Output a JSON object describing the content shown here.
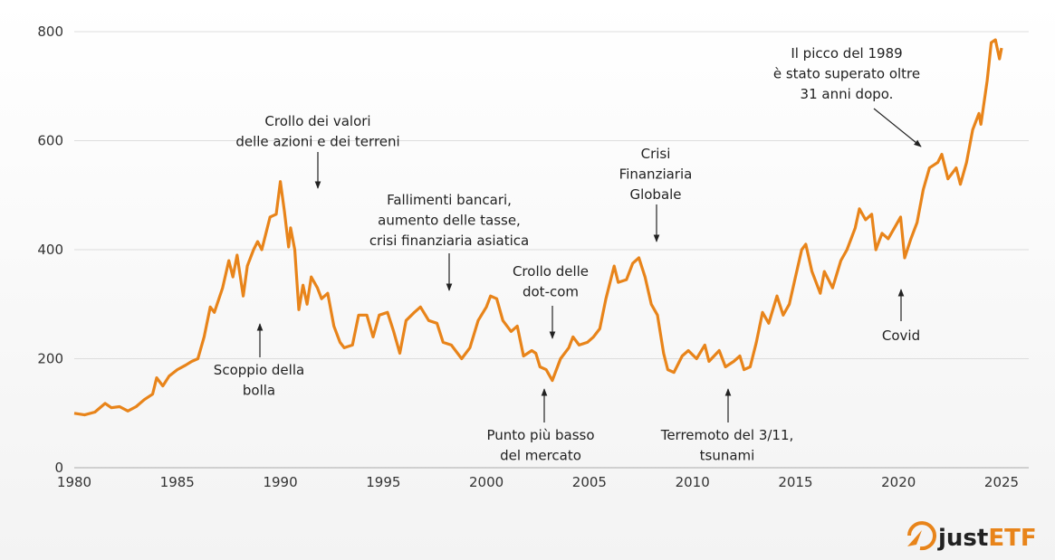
{
  "chart_data": {
    "type": "line",
    "title": "",
    "xlabel": "",
    "ylabel": "",
    "xlim": [
      1980,
      2025
    ],
    "ylim": [
      0,
      800
    ],
    "grid": true,
    "x_ticks": [
      "1980",
      "1985",
      "1990",
      "1995",
      "2000",
      "2005",
      "2010",
      "2015",
      "2020",
      "2025"
    ],
    "y_ticks": [
      "0",
      "200",
      "400",
      "600",
      "800"
    ],
    "line_color": "#e8841a",
    "series": [
      {
        "x": [
          1980,
          1980.5,
          1981,
          1981.5,
          1981.8,
          1982.2,
          1982.6,
          1983,
          1983.4,
          1983.8,
          1984,
          1984.3,
          1984.6,
          1985,
          1985.4,
          1985.7,
          1986,
          1986.3,
          1986.6,
          1986.8,
          1987.2,
          1987.5,
          1987.7,
          1987.9,
          1988.2,
          1988.4,
          1988.7,
          1988.9,
          1989.1,
          1989.5,
          1989.8,
          1990,
          1990.2,
          1990.4,
          1990.5,
          1990.7,
          1990.9,
          1991.1,
          1991.3,
          1991.5,
          1991.8,
          1992,
          1992.3,
          1992.6,
          1992.9,
          1993.1,
          1993.5,
          1993.8,
          1994.2,
          1994.5,
          1994.8,
          1995.2,
          1995.5,
          1995.8,
          1996.1,
          1996.5,
          1996.8,
          1997.2,
          1997.6,
          1997.9,
          1998.3,
          1998.8,
          1999.2,
          1999.6,
          2000,
          2000.2,
          2000.5,
          2000.8,
          2001.2,
          2001.5,
          2001.8,
          2002.2,
          2002.4,
          2002.6,
          2002.9,
          2003.2,
          2003.6,
          2004,
          2004.2,
          2004.5,
          2004.9,
          2005.2,
          2005.5,
          2005.8,
          2006.2,
          2006.4,
          2006.8,
          2007.1,
          2007.4,
          2007.7,
          2008,
          2008.3,
          2008.6,
          2008.8,
          2009.1,
          2009.5,
          2009.8,
          2010.2,
          2010.6,
          2010.8,
          2011.3,
          2011.6,
          2012,
          2012.3,
          2012.5,
          2012.8,
          2013.1,
          2013.4,
          2013.7,
          2014.1,
          2014.4,
          2014.7,
          2015,
          2015.3,
          2015.5,
          2015.8,
          2016.2,
          2016.4,
          2016.8,
          2017.2,
          2017.5,
          2017.9,
          2018.1,
          2018.4,
          2018.7,
          2018.9,
          2019.2,
          2019.5,
          2019.8,
          2020.1,
          2020.3,
          2020.6,
          2020.9,
          2021.2,
          2021.5,
          2021.9,
          2022.1,
          2022.4,
          2022.8,
          2023,
          2023.3,
          2023.6,
          2023.9,
          2024,
          2024.3,
          2024.5,
          2024.7,
          2024.9,
          2025
        ],
        "y": [
          100,
          97,
          102,
          118,
          110,
          112,
          104,
          112,
          125,
          135,
          165,
          150,
          168,
          180,
          188,
          195,
          200,
          240,
          295,
          285,
          330,
          380,
          350,
          390,
          315,
          370,
          400,
          415,
          400,
          460,
          465,
          525,
          470,
          405,
          440,
          400,
          290,
          335,
          300,
          350,
          330,
          310,
          320,
          260,
          230,
          220,
          225,
          280,
          280,
          240,
          280,
          285,
          250,
          210,
          270,
          285,
          295,
          270,
          265,
          230,
          225,
          200,
          220,
          270,
          295,
          315,
          310,
          270,
          250,
          260,
          205,
          215,
          210,
          185,
          180,
          160,
          200,
          220,
          240,
          225,
          230,
          240,
          255,
          310,
          370,
          340,
          345,
          375,
          385,
          350,
          300,
          280,
          210,
          180,
          175,
          205,
          215,
          200,
          225,
          195,
          215,
          185,
          195,
          205,
          180,
          185,
          230,
          285,
          265,
          315,
          280,
          300,
          350,
          400,
          410,
          360,
          320,
          360,
          330,
          380,
          400,
          440,
          475,
          455,
          465,
          400,
          430,
          420,
          440,
          460,
          385,
          420,
          450,
          510,
          550,
          560,
          575,
          530,
          550,
          520,
          560,
          620,
          650,
          630,
          710,
          780,
          785,
          750,
          770
        ]
      }
    ],
    "annotations": [
      {
        "id": "bubble-crash",
        "lines": [
          "Crollo dei valori",
          "delle azioni e dei terreni"
        ]
      },
      {
        "id": "bank-failures",
        "lines": [
          "Fallimenti bancari,",
          "aumento delle tasse,",
          "crisi finanziaria asiatica"
        ]
      },
      {
        "id": "bubble-burst",
        "lines": [
          "Scoppio della",
          "bolla"
        ]
      },
      {
        "id": "dotcom",
        "lines": [
          "Crollo delle",
          "dot-com"
        ]
      },
      {
        "id": "market-low",
        "lines": [
          "Punto più basso",
          "del mercato"
        ]
      },
      {
        "id": "gfc",
        "lines": [
          "Crisi",
          "Finanziaria",
          "Globale"
        ]
      },
      {
        "id": "tsunami",
        "lines": [
          "Terremoto del 3/11,",
          "tsunami"
        ]
      },
      {
        "id": "covid",
        "lines": [
          "Covid"
        ]
      },
      {
        "id": "record",
        "lines": [
          "Il picco del 1989",
          "è stato superato oltre",
          "31 anni dopo."
        ]
      }
    ]
  },
  "logo": {
    "text_a": "just",
    "text_b": "ETF",
    "brand_color": "#e8841a"
  }
}
